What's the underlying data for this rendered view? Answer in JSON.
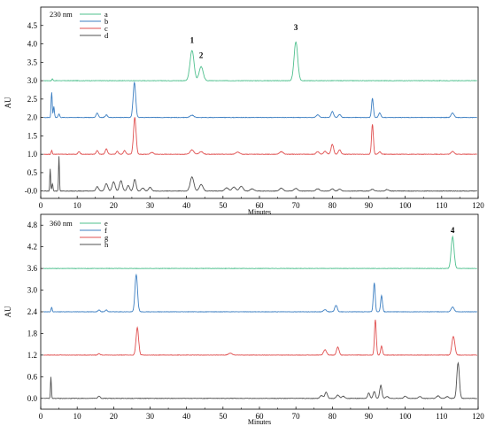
{
  "chart_data": [
    {
      "type": "line",
      "panel_label": "230 nm",
      "xlabel": "Minutes",
      "ylabel": "AU",
      "xlim": [
        0,
        120
      ],
      "ylim": [
        -0.2,
        5.0
      ],
      "xticks": [
        0,
        10,
        20,
        30,
        40,
        50,
        60,
        70,
        80,
        90,
        100,
        110,
        120
      ],
      "yticks": [
        "-0.0",
        "0.5",
        "1.0",
        "1.5",
        "2.0",
        "2.5",
        "3.0",
        "3.5",
        "4.0",
        "4.5"
      ],
      "ytick_values": [
        0,
        0.5,
        1.0,
        1.5,
        2.0,
        2.5,
        3.0,
        3.5,
        4.0,
        4.5
      ],
      "legend_position": "top-left",
      "grid": false,
      "annotations": [
        {
          "text": "1",
          "x": 41.5,
          "y": 4.02
        },
        {
          "text": "2",
          "x": 44.0,
          "y": 3.62
        },
        {
          "text": "3",
          "x": 70.0,
          "y": 4.38
        }
      ],
      "series": [
        {
          "name": "a",
          "color": "#4fc08e",
          "baseline": 3.0,
          "peaks": [
            [
              3.2,
              0.05,
              0.15
            ],
            [
              41.5,
              0.82,
              0.55
            ],
            [
              44.0,
              0.38,
              0.55
            ],
            [
              70.0,
              1.05,
              0.5
            ]
          ]
        },
        {
          "name": "b",
          "color": "#3d7fc2",
          "baseline": 2.0,
          "peaks": [
            [
              3.0,
              0.68,
              0.15
            ],
            [
              3.6,
              0.3,
              0.15
            ],
            [
              5.0,
              0.1,
              0.2
            ],
            [
              15.5,
              0.12,
              0.3
            ],
            [
              18.0,
              0.07,
              0.3
            ],
            [
              25.7,
              0.95,
              0.35
            ],
            [
              41.5,
              0.06,
              0.5
            ],
            [
              76.0,
              0.07,
              0.4
            ],
            [
              80.0,
              0.16,
              0.35
            ],
            [
              82.0,
              0.08,
              0.35
            ],
            [
              91.0,
              0.52,
              0.25
            ],
            [
              93.0,
              0.12,
              0.3
            ],
            [
              113.0,
              0.12,
              0.4
            ]
          ]
        },
        {
          "name": "c",
          "color": "#e05050",
          "baseline": 1.0,
          "peaks": [
            [
              3.0,
              0.1,
              0.15
            ],
            [
              10.5,
              0.07,
              0.3
            ],
            [
              15.5,
              0.1,
              0.3
            ],
            [
              18.0,
              0.15,
              0.3
            ],
            [
              21.0,
              0.08,
              0.3
            ],
            [
              23.0,
              0.1,
              0.3
            ],
            [
              25.8,
              1.0,
              0.35
            ],
            [
              30.5,
              0.05,
              0.4
            ],
            [
              41.5,
              0.12,
              0.5
            ],
            [
              44.0,
              0.07,
              0.5
            ],
            [
              54.0,
              0.06,
              0.5
            ],
            [
              66.0,
              0.07,
              0.5
            ],
            [
              76.0,
              0.07,
              0.4
            ],
            [
              78.0,
              0.08,
              0.4
            ],
            [
              80.0,
              0.27,
              0.35
            ],
            [
              82.0,
              0.12,
              0.35
            ],
            [
              91.0,
              0.82,
              0.25
            ],
            [
              93.0,
              0.07,
              0.3
            ],
            [
              113.0,
              0.08,
              0.4
            ]
          ]
        },
        {
          "name": "d",
          "color": "#505050",
          "baseline": 0.0,
          "peaks": [
            [
              2.6,
              0.6,
              0.12
            ],
            [
              3.2,
              0.2,
              0.15
            ],
            [
              5.0,
              0.95,
              0.12
            ],
            [
              15.5,
              0.12,
              0.35
            ],
            [
              18.0,
              0.2,
              0.4
            ],
            [
              20.0,
              0.25,
              0.4
            ],
            [
              22.0,
              0.28,
              0.4
            ],
            [
              24.0,
              0.15,
              0.35
            ],
            [
              25.8,
              0.32,
              0.35
            ],
            [
              28.0,
              0.08,
              0.4
            ],
            [
              30.0,
              0.1,
              0.4
            ],
            [
              41.5,
              0.38,
              0.5
            ],
            [
              44.0,
              0.18,
              0.5
            ],
            [
              51.0,
              0.09,
              0.5
            ],
            [
              53.0,
              0.11,
              0.5
            ],
            [
              55.0,
              0.13,
              0.5
            ],
            [
              58.0,
              0.06,
              0.5
            ],
            [
              66.0,
              0.08,
              0.5
            ],
            [
              70.0,
              0.07,
              0.5
            ],
            [
              76.0,
              0.06,
              0.5
            ],
            [
              80.0,
              0.06,
              0.4
            ],
            [
              82.0,
              0.05,
              0.4
            ],
            [
              91.0,
              0.05,
              0.4
            ],
            [
              95.0,
              0.04,
              0.4
            ]
          ]
        }
      ]
    },
    {
      "type": "line",
      "panel_label": "360 nm",
      "xlabel": "Minutes",
      "ylabel": "AU",
      "xlim": [
        0,
        120
      ],
      "ylim": [
        -0.3,
        5.1
      ],
      "xticks": [
        0,
        10,
        20,
        30,
        40,
        50,
        60,
        70,
        80,
        90,
        100,
        110,
        120
      ],
      "yticks": [
        "0.0",
        "0.6",
        "1.2",
        "1.8",
        "2.4",
        "3.0",
        "3.6",
        "4.2",
        "4.8"
      ],
      "ytick_values": [
        0,
        0.6,
        1.2,
        1.8,
        2.4,
        3.0,
        3.6,
        4.2,
        4.8
      ],
      "legend_position": "top-left",
      "grid": false,
      "annotations": [
        {
          "text": "4",
          "x": 113.0,
          "y": 4.58
        }
      ],
      "series": [
        {
          "name": "e",
          "color": "#4fc08e",
          "baseline": 3.6,
          "peaks": [
            [
              113.0,
              0.88,
              0.4
            ]
          ]
        },
        {
          "name": "f",
          "color": "#3d7fc2",
          "baseline": 2.4,
          "peaks": [
            [
              3.0,
              0.12,
              0.15
            ],
            [
              16.0,
              0.05,
              0.3
            ],
            [
              18.0,
              0.05,
              0.3
            ],
            [
              26.2,
              1.02,
              0.35
            ],
            [
              78.0,
              0.06,
              0.4
            ],
            [
              81.0,
              0.18,
              0.35
            ],
            [
              91.5,
              0.8,
              0.25
            ],
            [
              93.5,
              0.45,
              0.25
            ],
            [
              113.0,
              0.13,
              0.4
            ]
          ]
        },
        {
          "name": "g",
          "color": "#e05050",
          "baseline": 1.2,
          "peaks": [
            [
              16.0,
              0.04,
              0.3
            ],
            [
              26.5,
              0.76,
              0.35
            ],
            [
              52.0,
              0.05,
              0.5
            ],
            [
              78.0,
              0.15,
              0.4
            ],
            [
              81.5,
              0.22,
              0.35
            ],
            [
              91.8,
              0.98,
              0.25
            ],
            [
              93.5,
              0.25,
              0.25
            ],
            [
              113.2,
              0.52,
              0.4
            ]
          ]
        },
        {
          "name": "h",
          "color": "#505050",
          "baseline": 0.0,
          "peaks": [
            [
              2.8,
              0.6,
              0.12
            ],
            [
              16.0,
              0.06,
              0.3
            ],
            [
              77.0,
              0.08,
              0.4
            ],
            [
              78.3,
              0.17,
              0.35
            ],
            [
              81.5,
              0.09,
              0.4
            ],
            [
              83.0,
              0.06,
              0.4
            ],
            [
              90.0,
              0.15,
              0.3
            ],
            [
              91.5,
              0.19,
              0.3
            ],
            [
              93.3,
              0.36,
              0.3
            ],
            [
              95.0,
              0.05,
              0.4
            ],
            [
              100.0,
              0.06,
              0.4
            ],
            [
              104.0,
              0.05,
              0.4
            ],
            [
              109.0,
              0.07,
              0.4
            ],
            [
              111.5,
              0.05,
              0.4
            ],
            [
              114.5,
              0.98,
              0.35
            ]
          ]
        }
      ]
    }
  ]
}
